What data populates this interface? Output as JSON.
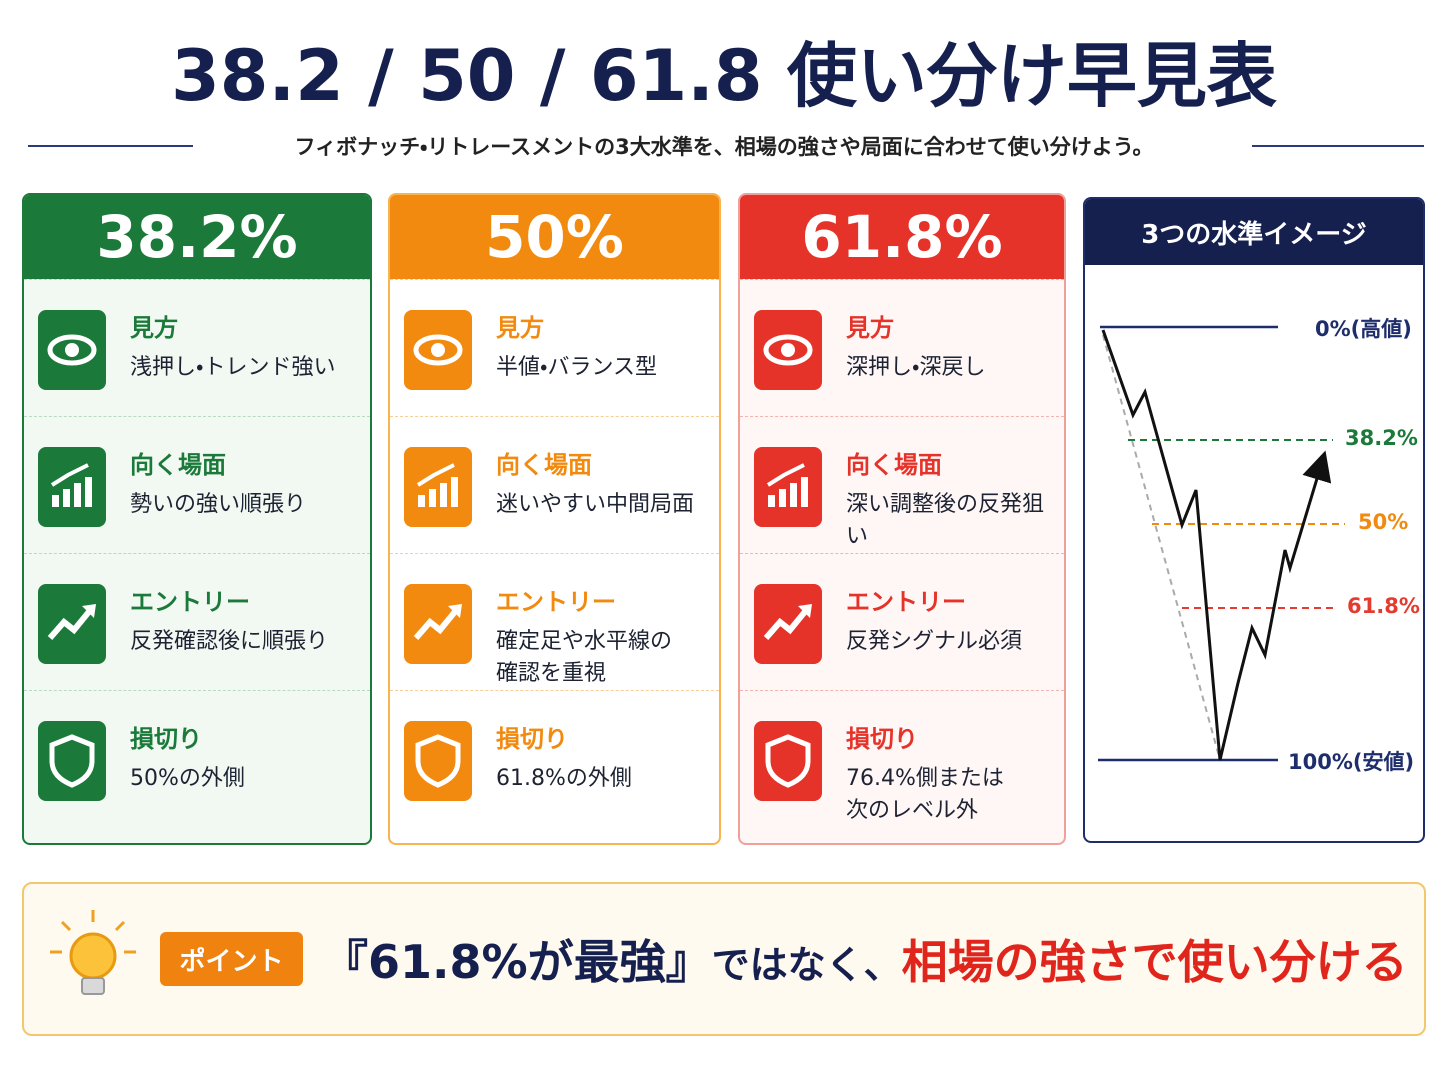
{
  "header": {
    "title": "38.2 / 50 / 61.8 使い分け早見表",
    "subtitle": "フィボナッチ・リトレースメントの3大水準を、相場の強さや局面に合わせて使い分けよう。"
  },
  "columns": [
    {
      "heading": "38.2%",
      "rows": [
        {
          "label": "見方",
          "text": "浅押し・トレンド強い"
        },
        {
          "label": "向く場面",
          "text": "勢いの強い順張り"
        },
        {
          "label": "エントリー",
          "text": "反発確認後に順張り"
        },
        {
          "label": "損切り",
          "text": "50%の外側"
        }
      ]
    },
    {
      "heading": "50%",
      "rows": [
        {
          "label": "見方",
          "text": "半値・バランス型"
        },
        {
          "label": "向く場面",
          "text": "迷いやすい中間局面"
        },
        {
          "label": "エントリー",
          "text": "確定足や水平線の\n確認を重視"
        },
        {
          "label": "損切り",
          "text": "61.8%の外側"
        }
      ]
    },
    {
      "heading": "61.8%",
      "rows": [
        {
          "label": "見方",
          "text": "深押し・深戻し"
        },
        {
          "label": "向く場面",
          "text": "深い調整後の反発狙い"
        },
        {
          "label": "エントリー",
          "text": "反発シグナル必須"
        },
        {
          "label": "損切り",
          "text": "76.4%側または\n次のレベル外"
        }
      ]
    }
  ],
  "panel": {
    "title": "3つの水準イメージ",
    "levels": [
      "0%(高値)",
      "38.2%",
      "50%",
      "61.8%",
      "100%(安値)"
    ]
  },
  "point": {
    "badge": "ポイント",
    "quote": "『61.8%が最強』",
    "middle": "ではなく、",
    "emphasis": "相場の強さで使い分ける"
  }
}
